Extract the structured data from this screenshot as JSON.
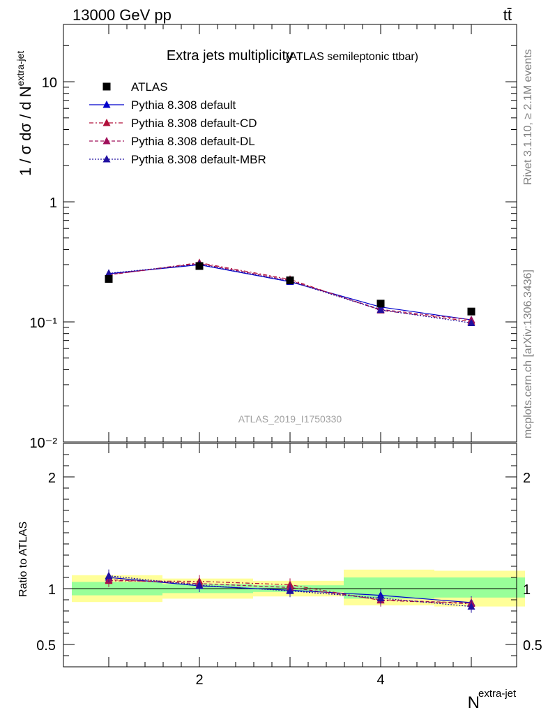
{
  "header": {
    "left": "13000 GeV pp",
    "right": "tt̄"
  },
  "side_labels": {
    "rivet": "Rivet 3.1.10, ≥ 2.1M events",
    "mcplots": "mcplots.cern.ch [arXiv:1306.3436]"
  },
  "colors": {
    "atlas": "#000000",
    "default": "#0000cc",
    "cd": "#b0103a",
    "dl": "#a0105a",
    "mbr": "#2010a0",
    "band_inner": "#99ff99",
    "band_outer": "#ffff99"
  },
  "chart_data": {
    "type": "line",
    "title": "Extra jets multiplicity",
    "subtitle": "(ATLAS semileptonic ttbar)",
    "analysis_id": "ATLAS_2019_I1750330",
    "xlabel_base": "N",
    "xlabel_sup": "extra-jet",
    "ylabel": "1 / σ dσ / d N",
    "ylabel_sup": "extra-jet",
    "ratio_ylabel": "Ratio to ATLAS",
    "xlim": [
      0.5,
      5.5
    ],
    "ylim": [
      0.01,
      30
    ],
    "yscale": "log",
    "ratio_ylim": [
      0.3,
      2.3
    ],
    "x_ticks": [
      "2",
      "4"
    ],
    "y_ticks": [
      "10⁻²",
      "10⁻¹",
      "1",
      "10"
    ],
    "ratio_ticks": [
      "0.5",
      "1",
      "2"
    ],
    "legend_position": "top-left",
    "x": [
      1,
      2,
      3,
      4,
      5
    ],
    "bin_edges": [
      0.5,
      1.5,
      2.5,
      3.5,
      4.5,
      5.5
    ],
    "series": [
      {
        "name": "ATLAS",
        "style": "markers",
        "values": [
          0.228,
          0.292,
          0.222,
          0.142,
          0.122
        ]
      },
      {
        "name": "Pythia 8.308 default",
        "style": "solid",
        "values": [
          0.252,
          0.299,
          0.216,
          0.133,
          0.104
        ],
        "ratio": [
          1.1,
          1.025,
          0.985,
          0.94,
          0.875
        ]
      },
      {
        "name": "Pythia 8.308 default-CD",
        "style": "dashdot",
        "values": [
          0.246,
          0.311,
          0.226,
          0.125,
          0.101
        ],
        "ratio": [
          1.07,
          1.065,
          1.035,
          0.895,
          0.865
        ]
      },
      {
        "name": "Pythia 8.308 default-DL",
        "style": "dashed",
        "values": [
          0.247,
          0.306,
          0.221,
          0.127,
          0.104
        ],
        "ratio": [
          1.08,
          1.045,
          1.01,
          0.9,
          0.87
        ]
      },
      {
        "name": "Pythia 8.308 default-MBR",
        "style": "dotted",
        "values": [
          0.254,
          0.302,
          0.218,
          0.126,
          0.098
        ],
        "ratio": [
          1.115,
          1.03,
          0.98,
          0.915,
          0.84
        ]
      }
    ],
    "ratio_bands": {
      "inner": [
        [
          0.94,
          1.06
        ],
        [
          0.96,
          1.04
        ],
        [
          0.97,
          1.03
        ],
        [
          0.91,
          1.1
        ],
        [
          0.92,
          1.1
        ]
      ],
      "outer": [
        [
          0.88,
          1.12
        ],
        [
          0.91,
          1.09
        ],
        [
          0.93,
          1.07
        ],
        [
          0.85,
          1.17
        ],
        [
          0.84,
          1.16
        ]
      ]
    }
  }
}
